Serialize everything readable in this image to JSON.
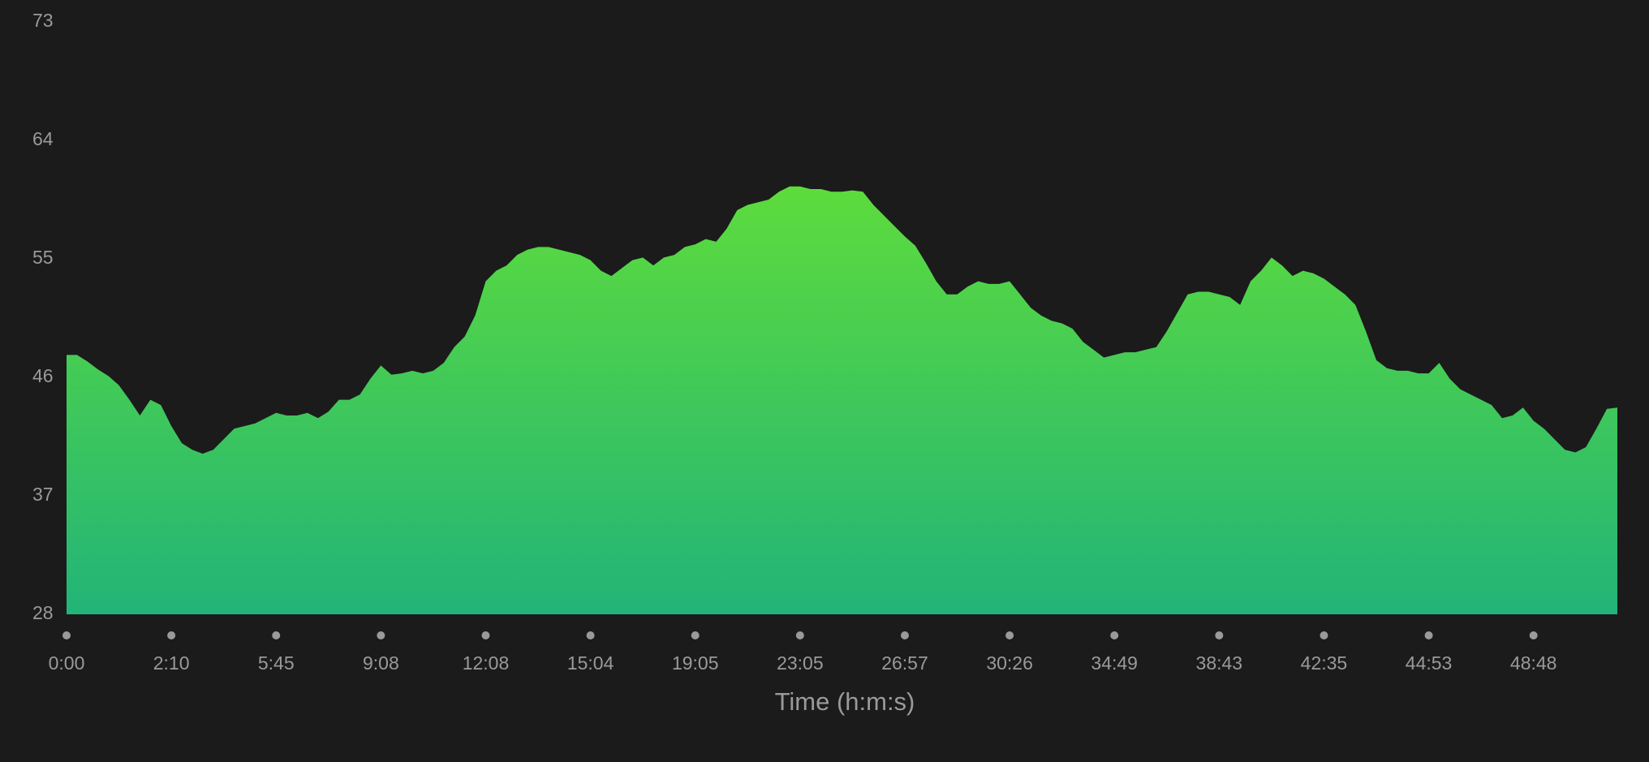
{
  "chart_data": {
    "type": "area",
    "x_label": "Time (h:m:s)",
    "categories": [
      "0:00",
      null,
      null,
      null,
      null,
      null,
      null,
      null,
      null,
      null,
      "2:10",
      null,
      null,
      null,
      null,
      null,
      null,
      null,
      null,
      null,
      "5:45",
      null,
      null,
      null,
      null,
      null,
      null,
      null,
      null,
      null,
      "9:08",
      null,
      null,
      null,
      null,
      null,
      null,
      null,
      null,
      null,
      "12:08",
      null,
      null,
      null,
      null,
      null,
      null,
      null,
      null,
      null,
      "15:04",
      null,
      null,
      null,
      null,
      null,
      null,
      null,
      null,
      null,
      "19:05",
      null,
      null,
      null,
      null,
      null,
      null,
      null,
      null,
      null,
      "23:05",
      null,
      null,
      null,
      null,
      null,
      null,
      null,
      null,
      null,
      "26:57",
      null,
      null,
      null,
      null,
      null,
      null,
      null,
      null,
      null,
      "30:26",
      null,
      null,
      null,
      null,
      null,
      null,
      null,
      null,
      null,
      "34:49",
      null,
      null,
      null,
      null,
      null,
      null,
      null,
      null,
      null,
      "38:43",
      null,
      null,
      null,
      null,
      null,
      null,
      null,
      null,
      null,
      "42:35",
      null,
      null,
      null,
      null,
      null,
      null,
      null,
      null,
      null,
      "44:53",
      null,
      null,
      null,
      null,
      null,
      null,
      null,
      null,
      null,
      "48:48",
      null,
      null,
      null,
      null,
      null,
      null,
      null,
      null
    ],
    "values": [
      47.7,
      47.7,
      47.2,
      46.6,
      46.1,
      45.4,
      44.3,
      43.1,
      44.3,
      43.9,
      42.3,
      41.0,
      40.5,
      40.2,
      40.5,
      41.3,
      42.1,
      42.3,
      42.5,
      42.9,
      43.3,
      43.1,
      43.1,
      43.3,
      42.9,
      43.4,
      44.3,
      44.3,
      44.7,
      45.9,
      46.9,
      46.2,
      46.3,
      46.5,
      46.3,
      46.5,
      47.1,
      48.3,
      49.1,
      50.7,
      53.3,
      54.1,
      54.5,
      55.3,
      55.7,
      55.9,
      55.9,
      55.7,
      55.5,
      55.3,
      54.9,
      54.1,
      53.7,
      54.3,
      54.9,
      55.1,
      54.5,
      55.1,
      55.3,
      55.9,
      56.1,
      56.5,
      56.3,
      57.3,
      58.7,
      59.1,
      59.3,
      59.5,
      60.1,
      60.5,
      60.5,
      60.3,
      60.3,
      60.1,
      60.1,
      60.2,
      60.1,
      59.1,
      58.3,
      57.5,
      56.7,
      56.0,
      54.7,
      53.3,
      52.3,
      52.3,
      52.9,
      53.3,
      53.1,
      53.1,
      53.3,
      52.3,
      51.3,
      50.7,
      50.3,
      50.1,
      49.7,
      48.7,
      48.1,
      47.5,
      47.7,
      47.9,
      47.9,
      48.1,
      48.3,
      49.5,
      50.9,
      52.3,
      52.5,
      52.5,
      52.3,
      52.1,
      51.5,
      53.3,
      54.1,
      55.1,
      54.5,
      53.7,
      54.1,
      53.9,
      53.5,
      52.9,
      52.3,
      51.5,
      49.5,
      47.3,
      46.7,
      46.5,
      46.5,
      46.3,
      46.3,
      47.1,
      45.9,
      45.1,
      44.7,
      44.3,
      43.9,
      42.9,
      43.1,
      43.7,
      42.7,
      42.1,
      41.3,
      40.5,
      40.3,
      40.7,
      42.1,
      43.6,
      43.7
    ],
    "colors": [
      "#5ddc3c",
      "#22b478"
    ],
    "ylim": [
      28,
      73
    ],
    "yticks": [
      28,
      37,
      46,
      55,
      64,
      73
    ],
    "grid": false
  }
}
